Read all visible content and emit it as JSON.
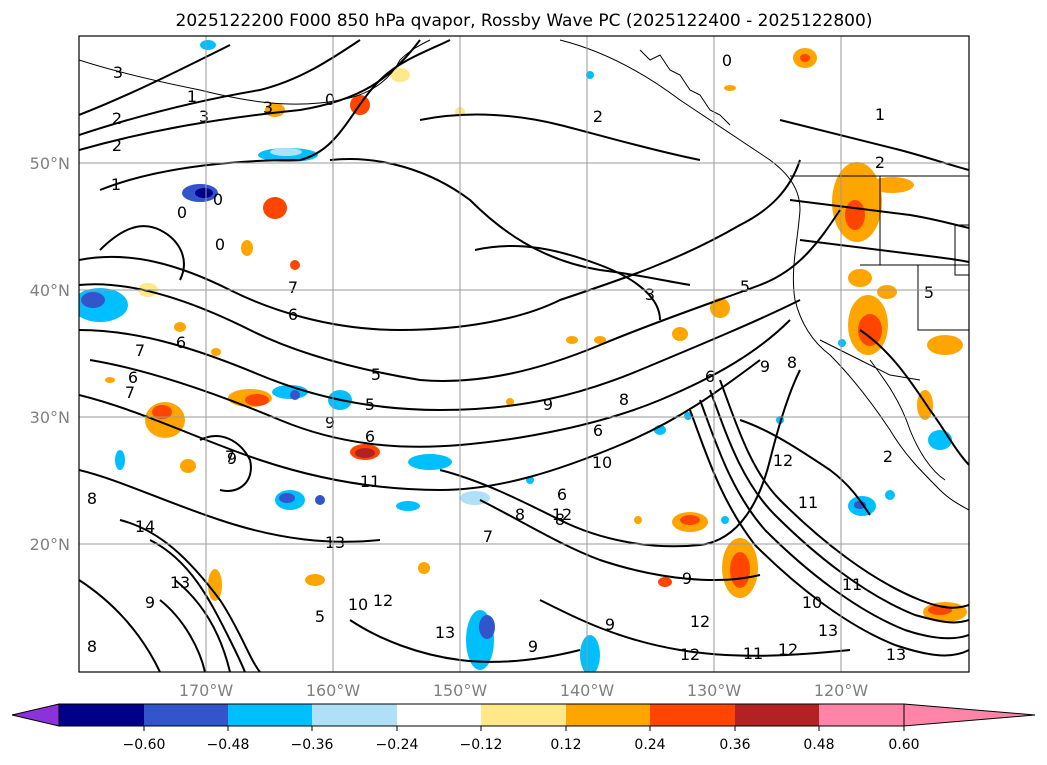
{
  "title": "2025122200 F000 850 hPa qvapor, Rossby Wave PC (2025122400 - 2025122800)",
  "map": {
    "lat_labels": [
      "50°N",
      "40°N",
      "30°N",
      "20°N"
    ],
    "lon_labels": [
      "170°W",
      "160°W",
      "150°W",
      "140°W",
      "130°W",
      "120°W"
    ],
    "contour_labels": [
      {
        "t": "3"
      },
      {
        "t": "1"
      },
      {
        "t": "3"
      },
      {
        "t": "2"
      },
      {
        "t": "2"
      },
      {
        "t": "3"
      },
      {
        "t": "0"
      },
      {
        "t": "2"
      },
      {
        "t": "0"
      },
      {
        "t": "1"
      },
      {
        "t": "0"
      },
      {
        "t": "0"
      },
      {
        "t": "0"
      },
      {
        "t": "1"
      },
      {
        "t": "3"
      },
      {
        "t": "5"
      },
      {
        "t": "7"
      },
      {
        "t": "6"
      },
      {
        "t": "7"
      },
      {
        "t": "6"
      },
      {
        "t": "6"
      },
      {
        "t": "7"
      },
      {
        "t": "5"
      },
      {
        "t": "5"
      },
      {
        "t": "9"
      },
      {
        "t": "6"
      },
      {
        "t": "6"
      },
      {
        "t": "9"
      },
      {
        "t": "8"
      },
      {
        "t": "9"
      },
      {
        "t": "8"
      },
      {
        "t": "6"
      },
      {
        "t": "7"
      },
      {
        "t": "10"
      },
      {
        "t": "6"
      },
      {
        "t": "11"
      },
      {
        "t": "12"
      },
      {
        "t": "8"
      },
      {
        "t": "7"
      },
      {
        "t": "13"
      },
      {
        "t": "14"
      },
      {
        "t": "13"
      },
      {
        "t": "9"
      },
      {
        "t": "8"
      },
      {
        "t": "5"
      },
      {
        "t": "10"
      },
      {
        "t": "12"
      },
      {
        "t": "13"
      },
      {
        "t": "9"
      },
      {
        "t": "9"
      },
      {
        "t": "12"
      },
      {
        "t": "12"
      },
      {
        "t": "11"
      },
      {
        "t": "12"
      },
      {
        "t": "13"
      },
      {
        "t": "13"
      },
      {
        "t": "10"
      },
      {
        "t": "11"
      },
      {
        "t": "12"
      },
      {
        "t": "11"
      },
      {
        "t": "2"
      },
      {
        "t": "2"
      },
      {
        "t": "5"
      },
      {
        "t": "9"
      },
      {
        "t": "8"
      },
      {
        "t": "9"
      },
      {
        "t": "8"
      }
    ]
  },
  "colorbar": {
    "ticks": [
      "−0.60",
      "−0.48",
      "−0.36",
      "−0.24",
      "−0.12",
      "0.12",
      "0.24",
      "0.36",
      "0.48",
      "0.60"
    ],
    "colors": [
      "#8b33d9",
      "#00008b",
      "#3355cc",
      "#00bfff",
      "#aee0f7",
      "#ffffff",
      "#ffe88a",
      "#ffa500",
      "#ff4500",
      "#b22222",
      "#ff85a8"
    ]
  }
}
